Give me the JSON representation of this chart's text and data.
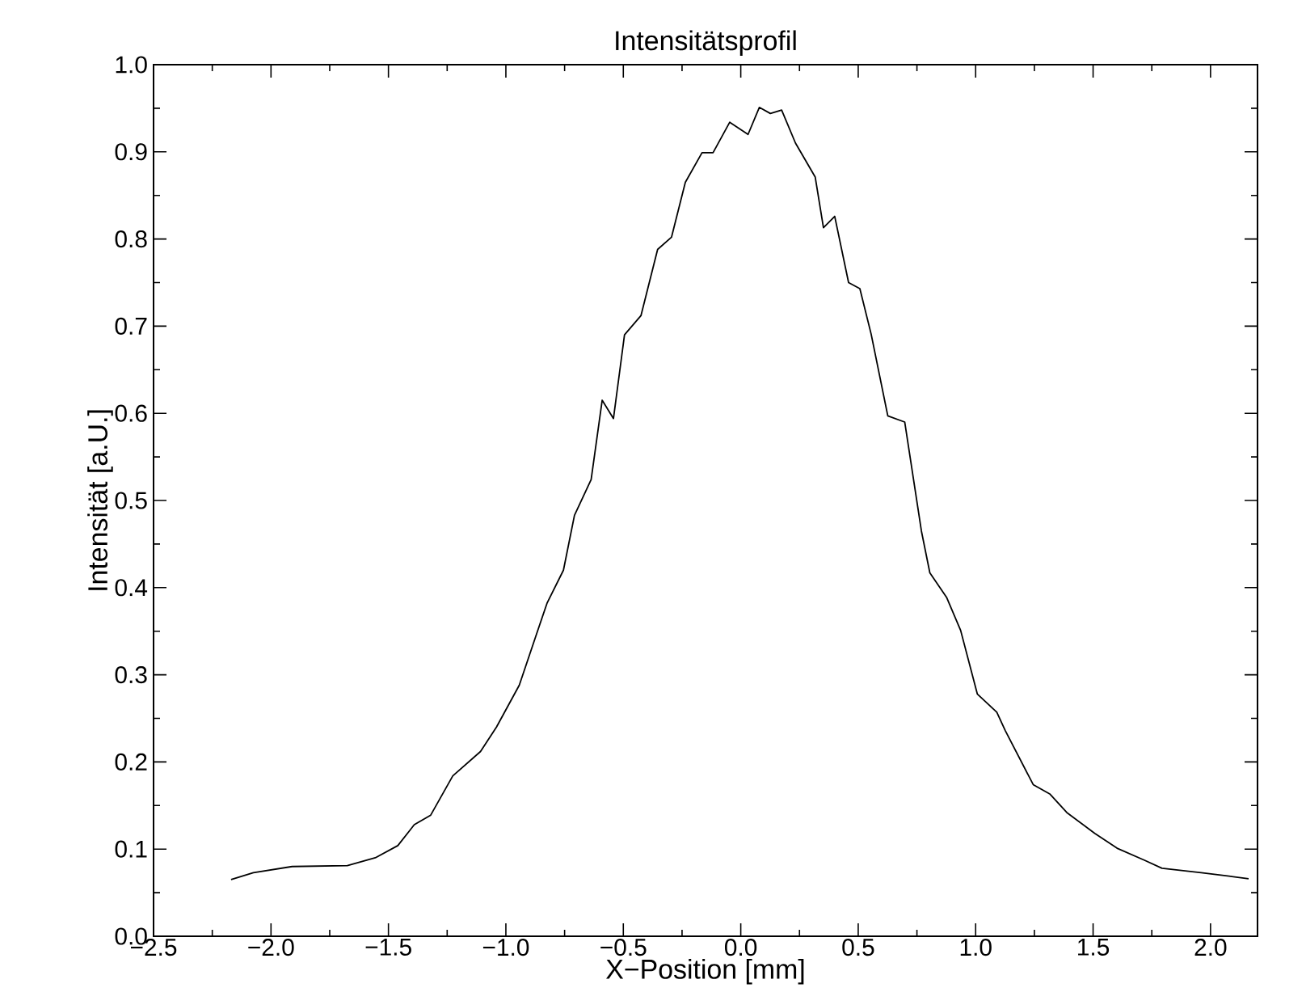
{
  "chart_data": {
    "type": "line",
    "title": "Intensitätsprofil",
    "xlabel": "X−Position [mm]",
    "ylabel": "Intensität [a.U.]",
    "xlim": [
      -2.5,
      2.2
    ],
    "ylim": [
      0,
      1
    ],
    "xticks": [
      {
        "value": -2.5,
        "label": "−2.5"
      },
      {
        "value": -2.0,
        "label": "−2.0"
      },
      {
        "value": -1.5,
        "label": "−1.5"
      },
      {
        "value": -1.0,
        "label": "−1.0"
      },
      {
        "value": -0.5,
        "label": "−0.5"
      },
      {
        "value": 0,
        "label": "0.0"
      },
      {
        "value": 0.5,
        "label": "0.5"
      },
      {
        "value": 1.0,
        "label": "1.0"
      },
      {
        "value": 1.5,
        "label": "1.5"
      },
      {
        "value": 2.0,
        "label": "2.0"
      }
    ],
    "yticks": [
      {
        "value": 0,
        "label": "0.0"
      },
      {
        "value": 0.1,
        "label": "0.1"
      },
      {
        "value": 0.2,
        "label": "0.2"
      },
      {
        "value": 0.3,
        "label": "0.3"
      },
      {
        "value": 0.4,
        "label": "0.4"
      },
      {
        "value": 0.5,
        "label": "0.5"
      },
      {
        "value": 0.6,
        "label": "0.6"
      },
      {
        "value": 0.7,
        "label": "0.7"
      },
      {
        "value": 0.8,
        "label": "0.8"
      },
      {
        "value": 0.9,
        "label": "0.9"
      },
      {
        "value": 1.0,
        "label": "1.0"
      }
    ],
    "grid": false,
    "marker": "none",
    "line_style": "solid",
    "series": [
      {
        "color": "#000000",
        "x": [
          -2.17,
          -2.075,
          -1.91,
          -1.675,
          -1.556,
          -1.46,
          -1.39,
          -1.32,
          -1.226,
          -1.108,
          -1.04,
          -0.943,
          -0.873,
          -0.825,
          -0.755,
          -0.708,
          -0.637,
          -0.59,
          -0.542,
          -0.495,
          -0.425,
          -0.354,
          -0.295,
          -0.236,
          -0.165,
          -0.118,
          -0.047,
          0.031,
          0.079,
          0.126,
          0.174,
          0.233,
          0.317,
          0.352,
          0.4,
          0.459,
          0.507,
          0.555,
          0.626,
          0.698,
          0.769,
          0.805,
          0.876,
          0.936,
          1.007,
          1.09,
          1.126,
          1.245,
          1.317,
          1.388,
          1.507,
          1.602,
          1.721,
          1.793,
          1.96,
          2.079,
          2.162
        ],
        "values": [
          0.065,
          0.073,
          0.08,
          0.081,
          0.09,
          0.104,
          0.128,
          0.139,
          0.184,
          0.212,
          0.24,
          0.288,
          0.344,
          0.382,
          0.42,
          0.483,
          0.524,
          0.615,
          0.594,
          0.69,
          0.712,
          0.788,
          0.802,
          0.865,
          0.899,
          0.899,
          0.934,
          0.92,
          0.951,
          0.944,
          0.948,
          0.91,
          0.871,
          0.813,
          0.826,
          0.75,
          0.743,
          0.691,
          0.597,
          0.59,
          0.465,
          0.417,
          0.389,
          0.351,
          0.278,
          0.257,
          0.236,
          0.174,
          0.163,
          0.142,
          0.118,
          0.101,
          0.087,
          0.078,
          0.073,
          0.069,
          0.066
        ]
      }
    ]
  }
}
